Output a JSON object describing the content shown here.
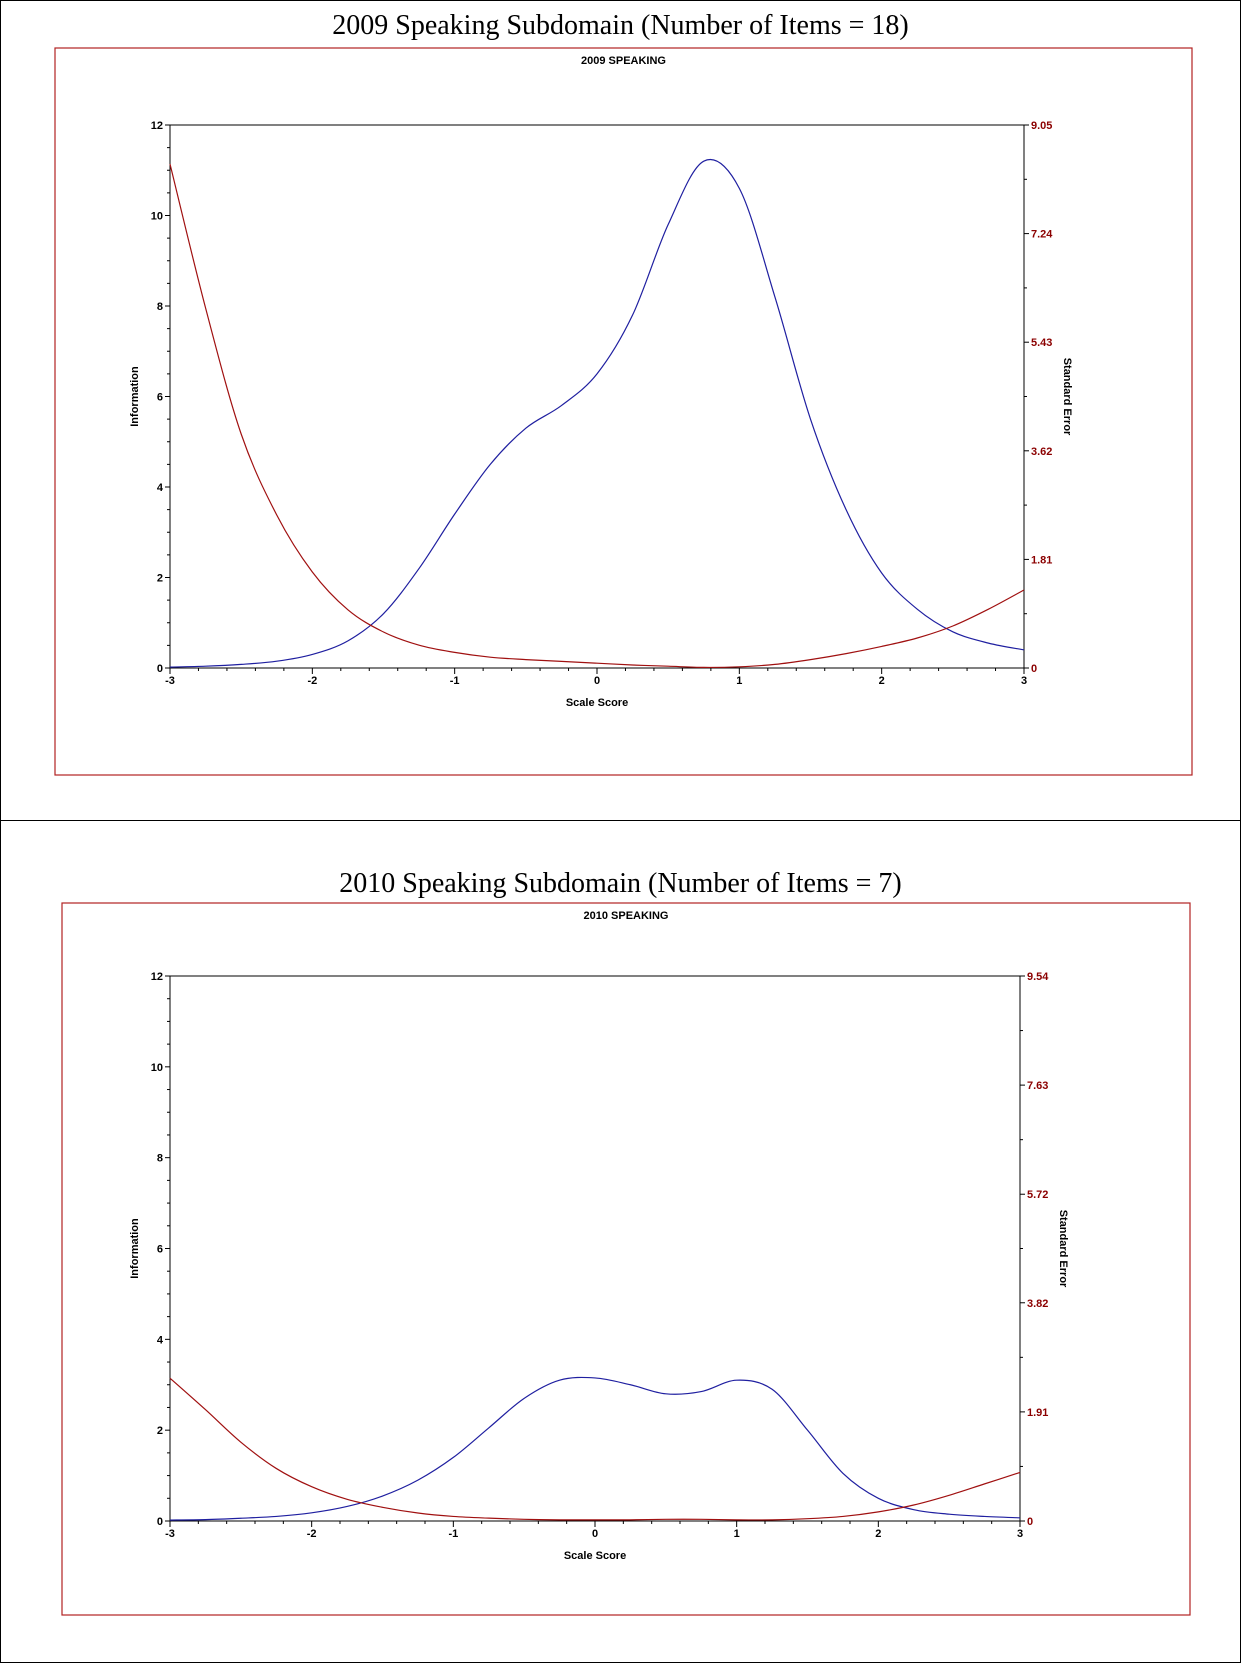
{
  "panels": [
    {
      "heading": "2009 Speaking Subdomain (Number of Items = 18)"
    },
    {
      "heading": "2010 Speaking Subdomain (Number of Items = 7)"
    }
  ],
  "colors": {
    "frame": "#b22222",
    "information_curve": "#1f1fa0",
    "standard_error_curve": "#a01010",
    "right_axis_text": "#8b0000"
  },
  "chart_data": [
    {
      "type": "line",
      "title": "2009 SPEAKING",
      "xlabel": "Scale Score",
      "ylabel": "Information",
      "y2label": "Standard Error",
      "xlim": [
        -3,
        3
      ],
      "ylim": [
        0,
        12
      ],
      "y2lim": [
        0,
        9.05
      ],
      "x_ticks": [
        "-3",
        "-2",
        "-1",
        "0",
        "1",
        "2",
        "3"
      ],
      "y_ticks": [
        "0",
        "2",
        "4",
        "6",
        "8",
        "10",
        "12"
      ],
      "y2_ticks": [
        "0",
        "1.81",
        "3.62",
        "5.43",
        "7.24",
        "9.05"
      ],
      "grid": false,
      "series": [
        {
          "name": "Information",
          "axis": "left",
          "x": [
            -3,
            -2.75,
            -2.5,
            -2.25,
            -2,
            -1.75,
            -1.5,
            -1.25,
            -1,
            -0.75,
            -0.5,
            -0.25,
            0,
            0.25,
            0.5,
            0.75,
            1,
            1.25,
            1.5,
            1.75,
            2,
            2.25,
            2.5,
            2.75,
            3
          ],
          "values": [
            0.02,
            0.04,
            0.08,
            0.15,
            0.3,
            0.6,
            1.2,
            2.2,
            3.4,
            4.5,
            5.3,
            5.8,
            6.5,
            7.8,
            9.8,
            11.2,
            10.6,
            8.2,
            5.5,
            3.5,
            2.1,
            1.3,
            0.8,
            0.55,
            0.4
          ]
        },
        {
          "name": "Standard Error",
          "axis": "right",
          "x": [
            -3,
            -2.75,
            -2.5,
            -2.25,
            -2,
            -1.75,
            -1.5,
            -1.25,
            -1,
            -0.75,
            -0.5,
            -0.25,
            0,
            0.25,
            0.5,
            0.75,
            1,
            1.25,
            1.5,
            1.75,
            2,
            2.25,
            2.5,
            2.75,
            3
          ],
          "values": [
            8.4,
            6.0,
            3.9,
            2.55,
            1.6,
            0.97,
            0.6,
            0.38,
            0.26,
            0.18,
            0.14,
            0.11,
            0.08,
            0.05,
            0.03,
            0.01,
            0.02,
            0.06,
            0.14,
            0.24,
            0.36,
            0.5,
            0.7,
            0.98,
            1.3
          ]
        }
      ]
    },
    {
      "type": "line",
      "title": "2010 SPEAKING",
      "xlabel": "Scale Score",
      "ylabel": "Information",
      "y2label": "Standard Error",
      "xlim": [
        -3,
        3
      ],
      "ylim": [
        0,
        12
      ],
      "y2lim": [
        0,
        9.54
      ],
      "x_ticks": [
        "-3",
        "-2",
        "-1",
        "0",
        "1",
        "2",
        "3"
      ],
      "y_ticks": [
        "0",
        "2",
        "4",
        "6",
        "8",
        "10",
        "12"
      ],
      "y2_ticks": [
        "0",
        "1.91",
        "3.82",
        "5.72",
        "7.63",
        "9.54"
      ],
      "grid": false,
      "series": [
        {
          "name": "Information",
          "axis": "left",
          "x": [
            -3,
            -2.75,
            -2.5,
            -2.25,
            -2,
            -1.75,
            -1.5,
            -1.25,
            -1,
            -0.75,
            -0.5,
            -0.25,
            0,
            0.25,
            0.5,
            0.75,
            1,
            1.25,
            1.5,
            1.75,
            2,
            2.25,
            2.5,
            2.75,
            3
          ],
          "values": [
            0.02,
            0.03,
            0.06,
            0.1,
            0.18,
            0.32,
            0.55,
            0.9,
            1.4,
            2.05,
            2.7,
            3.1,
            3.15,
            3.0,
            2.8,
            2.85,
            3.1,
            2.9,
            2.0,
            1.05,
            0.5,
            0.25,
            0.15,
            0.1,
            0.07
          ]
        },
        {
          "name": "Standard Error",
          "axis": "right",
          "x": [
            -3,
            -2.75,
            -2.5,
            -2.25,
            -2,
            -1.75,
            -1.5,
            -1.25,
            -1,
            -0.75,
            -0.5,
            -0.25,
            0,
            0.25,
            0.5,
            0.75,
            1,
            1.25,
            1.5,
            1.75,
            2,
            2.25,
            2.5,
            2.75,
            3
          ],
          "values": [
            2.5,
            1.95,
            1.38,
            0.92,
            0.6,
            0.38,
            0.24,
            0.14,
            0.08,
            0.05,
            0.03,
            0.02,
            0.02,
            0.02,
            0.03,
            0.03,
            0.02,
            0.02,
            0.04,
            0.08,
            0.16,
            0.28,
            0.45,
            0.65,
            0.85
          ]
        }
      ]
    }
  ]
}
